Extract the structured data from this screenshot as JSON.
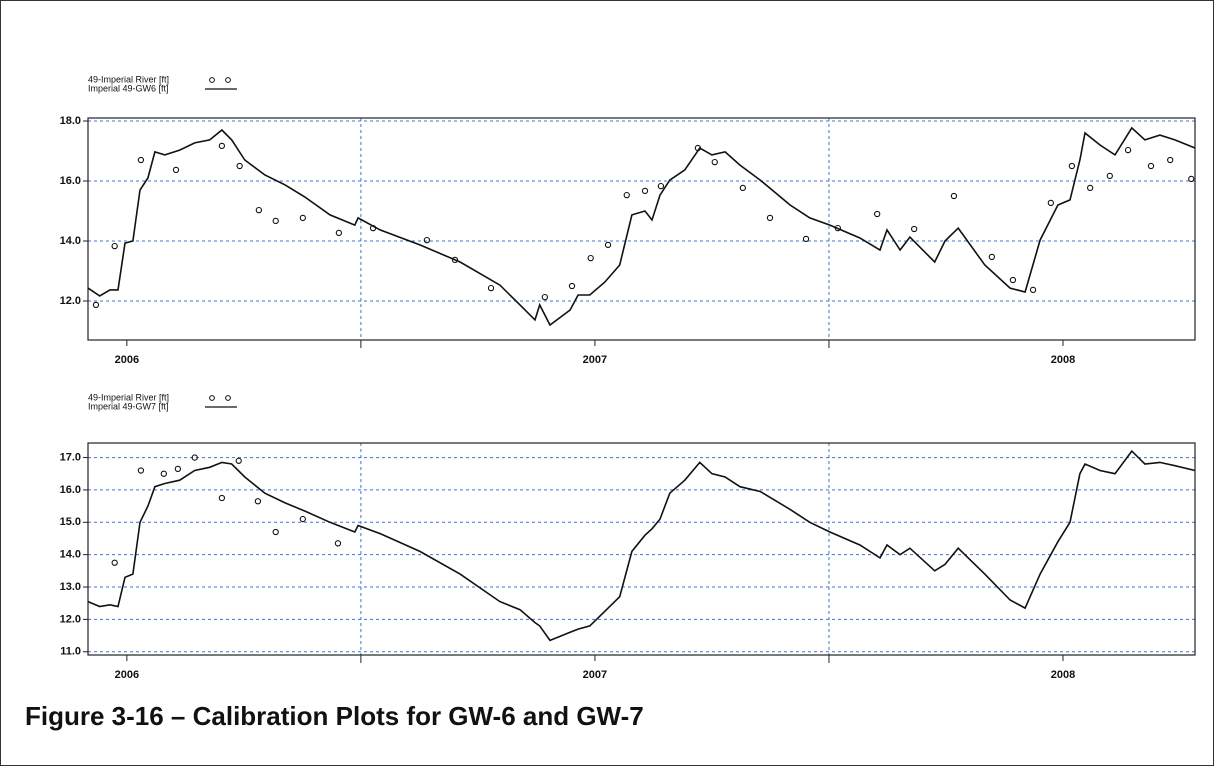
{
  "figure_title": "Figure 3-16 – Calibration Plots for GW-6 and GW-7",
  "chart_data": [
    {
      "type": "line",
      "xlim": [
        2005.917,
        2008.282
      ],
      "xticks": [
        2006,
        2007,
        2008
      ],
      "xgrid_lines": [
        2006.5,
        2007.5
      ],
      "ylim": [
        10.7,
        18.1
      ],
      "yticks": [
        {
          "value": 12,
          "label": "12.0"
        },
        {
          "value": 14,
          "label": "14.0"
        },
        {
          "value": 16,
          "label": "16.0"
        },
        {
          "value": 18,
          "label": "18.0"
        }
      ],
      "grid": true,
      "series": [
        {
          "name": "49-Imperial River [ft]",
          "type": "scatter",
          "color": "#111111",
          "x": [
            2005.934,
            2005.974,
            2006.03,
            2006.105,
            2006.203,
            2006.241,
            2006.282,
            2006.318,
            2006.376,
            2006.453,
            2006.526,
            2006.641,
            2006.701,
            2006.778,
            2006.893,
            2006.951,
            2006.991,
            2007.028,
            2007.068,
            2007.107,
            2007.141,
            2007.22,
            2007.256,
            2007.316,
            2007.374,
            2007.451,
            2007.519,
            2007.603,
            2007.682,
            2007.767,
            2007.848,
            2007.893,
            2007.936,
            2007.974,
            2008.019,
            2008.058,
            2008.1,
            2008.139,
            2008.188,
            2008.229,
            2008.274
          ],
          "values": [
            11.87,
            13.83,
            16.7,
            16.37,
            17.17,
            16.5,
            15.03,
            14.67,
            14.77,
            14.27,
            14.43,
            14.03,
            13.37,
            12.43,
            12.13,
            12.5,
            13.43,
            13.87,
            15.53,
            15.67,
            15.83,
            17.1,
            16.63,
            15.77,
            14.77,
            14.07,
            14.43,
            14.9,
            14.4,
            15.5,
            13.47,
            12.7,
            12.37,
            15.27,
            16.5,
            15.77,
            16.17,
            17.03,
            16.5,
            16.7,
            16.07
          ]
        },
        {
          "name": "Imperial 49-GW6 [ft]",
          "type": "line",
          "color": "#111111",
          "x": [
            2005.917,
            2005.942,
            2005.964,
            2005.981,
            2005.996,
            2006.013,
            2006.028,
            2006.045,
            2006.06,
            2006.081,
            2006.113,
            2006.145,
            2006.177,
            2006.203,
            2006.224,
            2006.252,
            2006.295,
            2006.338,
            2006.38,
            2006.434,
            2006.487,
            2006.494,
            2006.541,
            2006.626,
            2006.712,
            2006.797,
            2006.84,
            2006.872,
            2006.882,
            2006.904,
            2006.947,
            2006.964,
            2006.989,
            2007.021,
            2007.053,
            2007.079,
            2007.107,
            2007.122,
            2007.139,
            2007.16,
            2007.192,
            2007.224,
            2007.25,
            2007.278,
            2007.31,
            2007.353,
            2007.417,
            2007.459,
            2007.502,
            2007.566,
            2007.609,
            2007.624,
            2007.652,
            2007.673,
            2007.726,
            2007.748,
            2007.776,
            2007.833,
            2007.887,
            2007.919,
            2007.951,
            2007.989,
            2008.015,
            2008.036,
            2008.047,
            2008.079,
            2008.111,
            2008.147,
            2008.175,
            2008.207,
            2008.239,
            2008.282
          ],
          "values": [
            12.43,
            12.17,
            12.37,
            12.37,
            13.93,
            14.0,
            15.7,
            16.1,
            16.97,
            16.87,
            17.03,
            17.27,
            17.37,
            17.7,
            17.37,
            16.7,
            16.2,
            15.87,
            15.47,
            14.87,
            14.53,
            14.77,
            14.37,
            13.87,
            13.3,
            12.53,
            11.87,
            11.37,
            11.87,
            11.2,
            11.7,
            12.2,
            12.2,
            12.63,
            13.2,
            14.87,
            15.0,
            14.7,
            15.53,
            16.03,
            16.37,
            17.1,
            16.87,
            16.97,
            16.53,
            16.03,
            15.2,
            14.77,
            14.53,
            14.1,
            13.7,
            14.37,
            13.7,
            14.13,
            13.3,
            14.0,
            14.43,
            13.2,
            12.43,
            12.3,
            14.03,
            15.2,
            15.37,
            16.7,
            17.6,
            17.2,
            16.87,
            17.77,
            17.37,
            17.53,
            17.37,
            17.1
          ]
        }
      ]
    },
    {
      "type": "line",
      "xlim": [
        2005.917,
        2008.282
      ],
      "xticks": [
        2006,
        2007,
        2008
      ],
      "xgrid_lines": [
        2006.5,
        2007.5
      ],
      "ylim": [
        10.9,
        17.45
      ],
      "yticks": [
        {
          "value": 11,
          "label": "11.0"
        },
        {
          "value": 12,
          "label": "12.0"
        },
        {
          "value": 13,
          "label": "13.0"
        },
        {
          "value": 14,
          "label": "14.0"
        },
        {
          "value": 15,
          "label": "15.0"
        },
        {
          "value": 16,
          "label": "16.0"
        },
        {
          "value": 17,
          "label": "17.0"
        }
      ],
      "grid": true,
      "series": [
        {
          "name": "49-Imperial River [ft]",
          "type": "scatter",
          "color": "#111111",
          "x": [
            2005.974,
            2006.03,
            2006.079,
            2006.109,
            2006.145,
            2006.203,
            2006.239,
            2006.28,
            2006.318,
            2006.376,
            2006.451
          ],
          "values": [
            13.75,
            16.6,
            16.5,
            16.65,
            17.0,
            15.75,
            16.9,
            15.65,
            14.7,
            15.1,
            14.35
          ]
        },
        {
          "name": "Imperial 49-GW7 [ft]",
          "type": "line",
          "color": "#111111",
          "x": [
            2005.917,
            2005.942,
            2005.964,
            2005.981,
            2005.996,
            2006.013,
            2006.028,
            2006.045,
            2006.06,
            2006.081,
            2006.113,
            2006.145,
            2006.177,
            2006.203,
            2006.224,
            2006.252,
            2006.295,
            2006.338,
            2006.38,
            2006.434,
            2006.487,
            2006.494,
            2006.541,
            2006.626,
            2006.712,
            2006.797,
            2006.84,
            2006.872,
            2006.882,
            2006.904,
            2006.947,
            2006.964,
            2006.989,
            2007.021,
            2007.053,
            2007.079,
            2007.107,
            2007.122,
            2007.139,
            2007.16,
            2007.192,
            2007.224,
            2007.25,
            2007.278,
            2007.31,
            2007.353,
            2007.417,
            2007.459,
            2007.502,
            2007.566,
            2007.609,
            2007.624,
            2007.652,
            2007.673,
            2007.726,
            2007.748,
            2007.776,
            2007.833,
            2007.887,
            2007.919,
            2007.951,
            2007.989,
            2008.015,
            2008.036,
            2008.047,
            2008.079,
            2008.111,
            2008.147,
            2008.175,
            2008.207,
            2008.239,
            2008.282
          ],
          "values": [
            12.55,
            12.4,
            12.45,
            12.4,
            13.3,
            13.4,
            15.0,
            15.5,
            16.1,
            16.2,
            16.3,
            16.6,
            16.7,
            16.85,
            16.8,
            16.4,
            15.9,
            15.6,
            15.35,
            15.0,
            14.7,
            14.9,
            14.65,
            14.1,
            13.4,
            12.55,
            12.3,
            11.9,
            11.8,
            11.35,
            11.6,
            11.7,
            11.8,
            12.25,
            12.7,
            14.1,
            14.6,
            14.8,
            15.1,
            15.9,
            16.3,
            16.85,
            16.5,
            16.4,
            16.1,
            15.95,
            15.4,
            15.0,
            14.7,
            14.3,
            13.9,
            14.3,
            14.0,
            14.2,
            13.5,
            13.7,
            14.2,
            13.4,
            12.6,
            12.35,
            13.4,
            14.4,
            15.0,
            16.5,
            16.8,
            16.6,
            16.5,
            17.2,
            16.8,
            16.85,
            16.75,
            16.6
          ]
        }
      ]
    }
  ]
}
